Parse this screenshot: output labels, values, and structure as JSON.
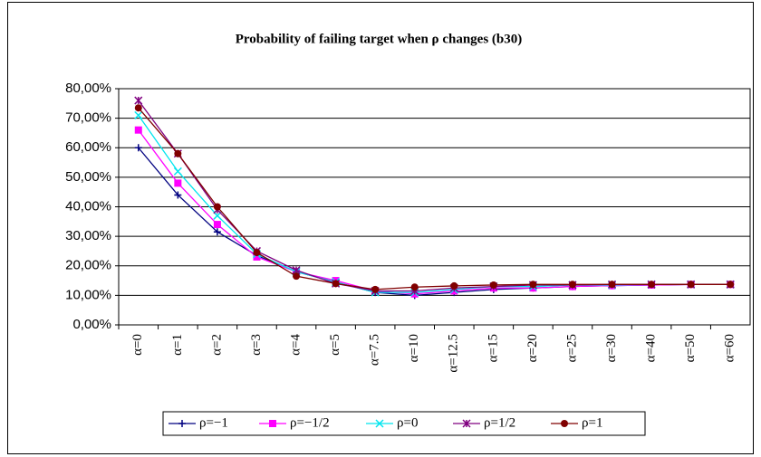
{
  "chart_data": {
    "type": "line",
    "title": "Probability of failing target when ρ changes (b30)",
    "categories": [
      "α=0",
      "α=1",
      "α=2",
      "α=3",
      "α=4",
      "α=5",
      "α=7.5",
      "α=10",
      "α=12.5",
      "α=15",
      "α=20",
      "α=25",
      "α=30",
      "α=40",
      "α=50",
      "α=60"
    ],
    "series": [
      {
        "name": "ρ=−1",
        "color": "#000080",
        "marker": "plus",
        "values": [
          60,
          44,
          31.5,
          23.5,
          18,
          14.5,
          11,
          10,
          11,
          12,
          12.5,
          13,
          13.3,
          13.5,
          13.7,
          13.7
        ]
      },
      {
        "name": "ρ=−1/2",
        "color": "#ff00ff",
        "marker": "square",
        "values": [
          66,
          48,
          34,
          23,
          18,
          15,
          11.5,
          10.5,
          11.5,
          12.5,
          12.5,
          13,
          13.3,
          13.5,
          13.7,
          13.7
        ]
      },
      {
        "name": "ρ=0",
        "color": "#00e5ee",
        "marker": "x",
        "values": [
          71,
          52,
          37,
          24,
          18,
          14.5,
          11,
          11,
          12,
          13,
          13,
          13.5,
          13.5,
          13.7,
          13.7,
          13.7
        ]
      },
      {
        "name": "ρ=1/2",
        "color": "#800080",
        "marker": "star",
        "values": [
          76,
          58,
          39,
          25,
          18.5,
          14,
          11.5,
          11.5,
          12.5,
          13,
          13.5,
          13.5,
          13.7,
          13.7,
          13.7,
          13.7
        ]
      },
      {
        "name": "ρ=1",
        "color": "#800000",
        "marker": "circle",
        "values": [
          73.5,
          58,
          40,
          24.5,
          16.5,
          14,
          12,
          12.8,
          13.2,
          13.5,
          13.7,
          13.7,
          13.7,
          13.7,
          13.7,
          13.7
        ]
      }
    ],
    "ylim": [
      0,
      80
    ],
    "yticks": [
      {
        "value": 0,
        "label": "0,00%"
      },
      {
        "value": 10,
        "label": "10,00%"
      },
      {
        "value": 20,
        "label": "20,00%"
      },
      {
        "value": 30,
        "label": "30,00%"
      },
      {
        "value": 40,
        "label": "40,00%"
      },
      {
        "value": 50,
        "label": "50,00%"
      },
      {
        "value": 60,
        "label": "60,00%"
      },
      {
        "value": 70,
        "label": "70,00%"
      },
      {
        "value": 80,
        "label": "80,00%"
      }
    ],
    "grid": true,
    "legend": "bottom"
  }
}
